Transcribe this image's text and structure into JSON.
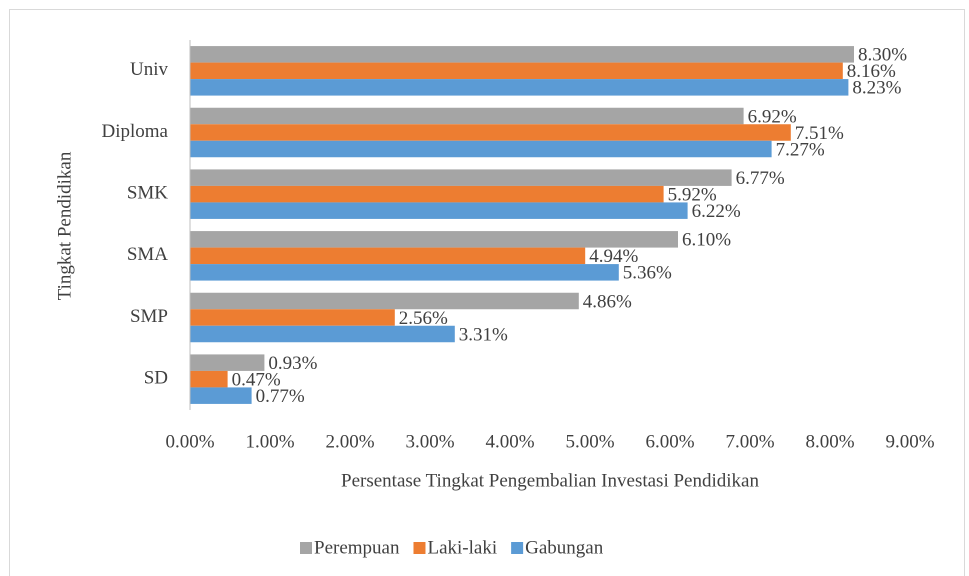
{
  "chart_data": {
    "type": "bar",
    "orientation": "horizontal",
    "xlabel": "Persentase Tingkat Pengembalian Investasi Pendidikan",
    "ylabel": "Tingkat Pendidikan",
    "categories": [
      "Univ",
      "Diploma",
      "SMK",
      "SMA",
      "SMP",
      "SD"
    ],
    "series": [
      {
        "name": "Perempuan",
        "color": "#a5a5a5",
        "values": [
          8.3,
          6.92,
          6.77,
          6.1,
          4.86,
          0.93
        ],
        "value_labels": [
          "8.30%",
          "6.92%",
          "6.77%",
          "6.10%",
          "4.86%",
          "0.93%"
        ]
      },
      {
        "name": "Laki-laki",
        "color": "#ed7d31",
        "values": [
          8.16,
          7.51,
          5.92,
          4.94,
          2.56,
          0.47
        ],
        "value_labels": [
          "8.16%",
          "7.51%",
          "5.92%",
          "4.94%",
          "2.56%",
          "0.47%"
        ]
      },
      {
        "name": "Gabungan",
        "color": "#5b9bd5",
        "values": [
          8.23,
          7.27,
          6.22,
          5.36,
          3.31,
          0.77
        ],
        "value_labels": [
          "8.23%",
          "7.27%",
          "6.22%",
          "5.36%",
          "3.31%",
          "0.77%"
        ]
      }
    ],
    "xlim": [
      0,
      9
    ],
    "xticks": [
      {
        "value": 0,
        "label": "0.00%"
      },
      {
        "value": 1,
        "label": "1.00%"
      },
      {
        "value": 2,
        "label": "2.00%"
      },
      {
        "value": 3,
        "label": "3.00%"
      },
      {
        "value": 4,
        "label": "4.00%"
      },
      {
        "value": 5,
        "label": "5.00%"
      },
      {
        "value": 6,
        "label": "6.00%"
      },
      {
        "value": 7,
        "label": "7.00%"
      },
      {
        "value": 8,
        "label": "8.00%"
      },
      {
        "value": 9,
        "label": "9.00%"
      }
    ],
    "legend": "bottom",
    "grid": false
  }
}
